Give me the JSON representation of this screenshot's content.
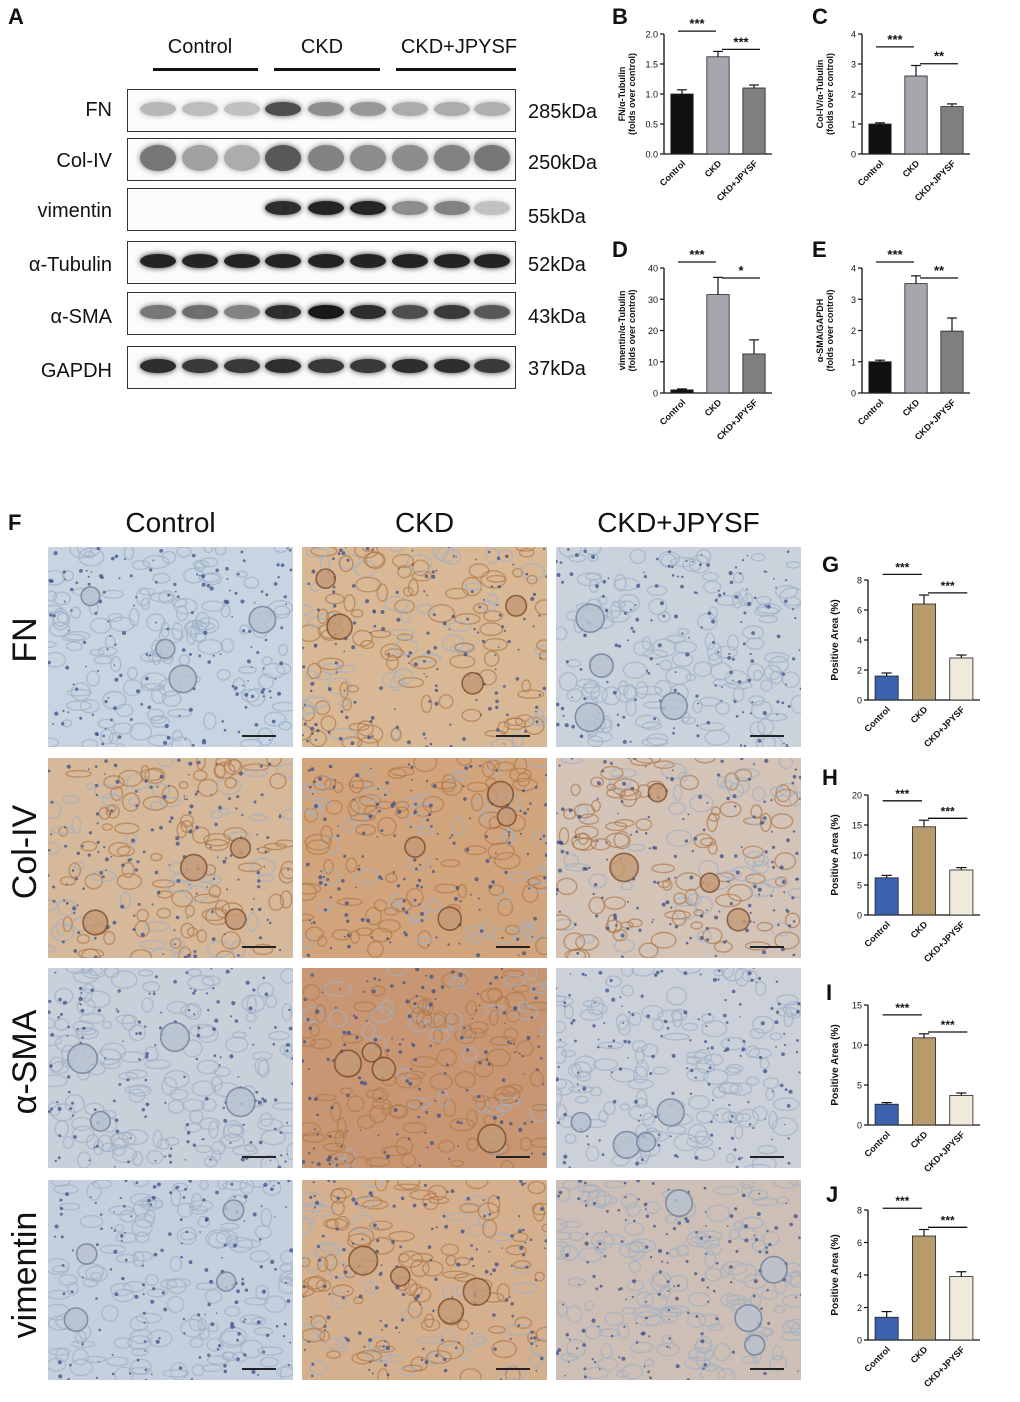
{
  "panels": {
    "A": "A",
    "B": "B",
    "C": "C",
    "D": "D",
    "E": "E",
    "F": "F",
    "G": "G",
    "H": "H",
    "I": "I",
    "J": "J"
  },
  "blot": {
    "groups": [
      "Control",
      "CKD",
      "CKD+JPYSF"
    ],
    "rows": [
      {
        "label": "FN",
        "kda": "285kDa"
      },
      {
        "label": "Col-IV",
        "kda": "250kDa"
      },
      {
        "label": "vimentin",
        "kda": "55kDa"
      },
      {
        "label": "α-Tubulin",
        "kda": "52kDa"
      },
      {
        "label": "α-SMA",
        "kda": "43kDa"
      },
      {
        "label": "GAPDH",
        "kda": "37kDa"
      }
    ]
  },
  "ihc": {
    "columns": [
      "Control",
      "CKD",
      "CKD+JPYSF"
    ],
    "rows": [
      "FN",
      "Col-IV",
      "α-SMA",
      "vimentin"
    ],
    "tint": {
      "FN": [
        "#c7d4e1",
        "#d9b896",
        "#cad3dc"
      ],
      "Col-IV": [
        "#d6b89a",
        "#d2a47c",
        "#d4c4b8"
      ],
      "α-SMA": [
        "#c9d0da",
        "#c89672",
        "#ccd1d9"
      ],
      "vimentin": [
        "#c5d0de",
        "#d5b08e",
        "#cdbfb5"
      ]
    }
  },
  "chart_data": [
    {
      "id": "B",
      "type": "bar",
      "categories": [
        "Control",
        "CKD",
        "CKD+JPYSF"
      ],
      "values": [
        1.0,
        1.62,
        1.1
      ],
      "errors": [
        0.07,
        0.09,
        0.05
      ],
      "ylabel": "FN/α-Tubulin\n(folds over control)",
      "ylim": [
        0,
        2.0
      ],
      "yticks": [
        "0.0",
        "0.5",
        "1.0",
        "1.5",
        "2.0"
      ],
      "colors": [
        "#111111",
        "#a6a6ad",
        "#7f7f7f"
      ],
      "sig": [
        {
          "a": 0,
          "b": 1,
          "label": "***"
        },
        {
          "a": 1,
          "b": 2,
          "label": "***"
        }
      ]
    },
    {
      "id": "C",
      "type": "bar",
      "categories": [
        "Control",
        "CKD",
        "CKD+JPYSF"
      ],
      "values": [
        1.0,
        2.6,
        1.58
      ],
      "errors": [
        0.04,
        0.35,
        0.09
      ],
      "ylabel": "Col-IV/α-Tubulin\n(folds over control)",
      "ylim": [
        0,
        4
      ],
      "yticks": [
        "0",
        "1",
        "2",
        "3",
        "4"
      ],
      "colors": [
        "#111111",
        "#a6a6ad",
        "#7f7f7f"
      ],
      "sig": [
        {
          "a": 0,
          "b": 1,
          "label": "***"
        },
        {
          "a": 1,
          "b": 2,
          "label": "**"
        }
      ]
    },
    {
      "id": "D",
      "type": "bar",
      "categories": [
        "Control",
        "CKD",
        "CKD+JPYSF"
      ],
      "values": [
        1.0,
        31.5,
        12.5
      ],
      "errors": [
        0.3,
        5.5,
        4.5
      ],
      "ylabel": "vimentin/α-Tubulin\n(folds over control)",
      "ylim": [
        0,
        40
      ],
      "yticks": [
        "0",
        "10",
        "20",
        "30",
        "40"
      ],
      "colors": [
        "#111111",
        "#a6a6ad",
        "#7f7f7f"
      ],
      "sig": [
        {
          "a": 0,
          "b": 1,
          "label": "***"
        },
        {
          "a": 1,
          "b": 2,
          "label": "*"
        }
      ]
    },
    {
      "id": "E",
      "type": "bar",
      "categories": [
        "Control",
        "CKD",
        "CKD+JPYSF"
      ],
      "values": [
        1.0,
        3.5,
        1.98
      ],
      "errors": [
        0.05,
        0.25,
        0.42
      ],
      "ylabel": "α-SMA/GAPDH\n(folds over control)",
      "ylim": [
        0,
        4
      ],
      "yticks": [
        "0",
        "1",
        "2",
        "3",
        "4"
      ],
      "colors": [
        "#111111",
        "#a6a6ad",
        "#7f7f7f"
      ],
      "sig": [
        {
          "a": 0,
          "b": 1,
          "label": "***"
        },
        {
          "a": 1,
          "b": 2,
          "label": "**"
        }
      ]
    },
    {
      "id": "G",
      "type": "bar",
      "categories": [
        "Control",
        "CKD",
        "CKD+JPYSF"
      ],
      "values": [
        1.6,
        6.4,
        2.8
      ],
      "errors": [
        0.2,
        0.6,
        0.2
      ],
      "ylabel": "Positive Area (%)",
      "ylim": [
        0,
        8
      ],
      "yticks": [
        "0",
        "2",
        "4",
        "6",
        "8"
      ],
      "colors": [
        "#3c62ad",
        "#b89b6c",
        "#efeadc"
      ],
      "sig": [
        {
          "a": 0,
          "b": 1,
          "label": "***"
        },
        {
          "a": 1,
          "b": 2,
          "label": "***"
        }
      ]
    },
    {
      "id": "H",
      "type": "bar",
      "categories": [
        "Control",
        "CKD",
        "CKD+JPYSF"
      ],
      "values": [
        6.2,
        14.7,
        7.5
      ],
      "errors": [
        0.4,
        1.1,
        0.4
      ],
      "ylabel": "Positive Area (%)",
      "ylim": [
        0,
        20
      ],
      "yticks": [
        "0",
        "5",
        "10",
        "15",
        "20"
      ],
      "colors": [
        "#3c62ad",
        "#b89b6c",
        "#efeadc"
      ],
      "sig": [
        {
          "a": 0,
          "b": 1,
          "label": "***"
        },
        {
          "a": 1,
          "b": 2,
          "label": "***"
        }
      ]
    },
    {
      "id": "I",
      "type": "bar",
      "categories": [
        "Control",
        "CKD",
        "CKD+JPYSF"
      ],
      "values": [
        2.6,
        10.9,
        3.7
      ],
      "errors": [
        0.2,
        0.5,
        0.3
      ],
      "ylabel": "Positive Area (%)",
      "ylim": [
        0,
        15
      ],
      "yticks": [
        "0",
        "5",
        "10",
        "15"
      ],
      "colors": [
        "#3c62ad",
        "#b89b6c",
        "#efeadc"
      ],
      "sig": [
        {
          "a": 0,
          "b": 1,
          "label": "***"
        },
        {
          "a": 1,
          "b": 2,
          "label": "***"
        }
      ]
    },
    {
      "id": "J",
      "type": "bar",
      "categories": [
        "Control",
        "CKD",
        "CKD+JPYSF"
      ],
      "values": [
        1.4,
        6.4,
        3.9
      ],
      "errors": [
        0.35,
        0.4,
        0.3
      ],
      "ylabel": "Positive Area (%)",
      "ylim": [
        0,
        8
      ],
      "yticks": [
        "0",
        "2",
        "4",
        "6",
        "8"
      ],
      "colors": [
        "#3c62ad",
        "#b89b6c",
        "#efeadc"
      ],
      "sig": [
        {
          "a": 0,
          "b": 1,
          "label": "***"
        },
        {
          "a": 1,
          "b": 2,
          "label": "***"
        }
      ]
    }
  ]
}
